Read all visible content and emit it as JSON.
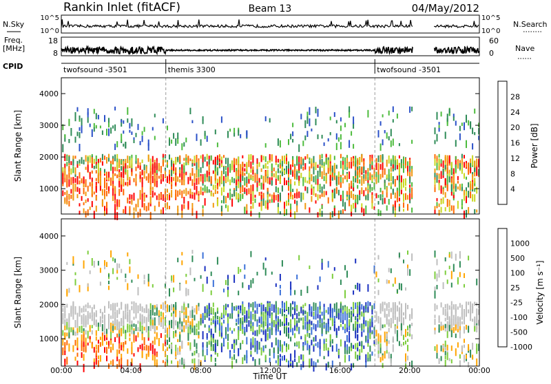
{
  "header": {
    "station": "Rankin Inlet (fitACF)",
    "beam": "Beam 13",
    "date": "04/May/2012"
  },
  "noise_panel": {
    "left_label": "N.Sky",
    "right_label": "N.Search",
    "left_ticks": [
      "10^5",
      "10^0"
    ],
    "right_ticks": [
      "10^5",
      "10^0"
    ]
  },
  "freq_panel": {
    "left_label_1": "Freq.",
    "left_label_2": "[MHz]",
    "right_label": "Nave",
    "left_ticks": [
      "18",
      "8"
    ],
    "right_ticks": [
      "60",
      "0"
    ]
  },
  "cpid": {
    "label": "CPID",
    "segments": [
      {
        "name": "twofsound -3501",
        "start": 0,
        "end": 6
      },
      {
        "name": "themis 3300",
        "start": 6,
        "end": 18
      },
      {
        "name": "twofsound -3501",
        "start": 18,
        "end": 24
      }
    ]
  },
  "chart_data": [
    {
      "type": "heatmap",
      "name": "power",
      "ylabel": "Slant Range [km]",
      "ylim": [
        200,
        4500
      ],
      "y_ticks": [
        "1000",
        "2000",
        "3000",
        "4000"
      ],
      "xlim": [
        0,
        24
      ],
      "colorbar": {
        "label": "Power [dB]",
        "ticks": [
          "4",
          "8",
          "12",
          "16",
          "20",
          "24",
          "28"
        ],
        "colors": [
          "#0000ff",
          "#2a50c8",
          "#2e8b57",
          "#4cbb3c",
          "#c8d820",
          "#f09a10",
          "#ff6a00",
          "#ff0000"
        ]
      }
    },
    {
      "type": "heatmap",
      "name": "velocity",
      "ylabel": "Slant Range [km]",
      "ylim": [
        200,
        4500
      ],
      "y_ticks": [
        "1000",
        "2000",
        "3000",
        "4000"
      ],
      "xlim": [
        0,
        24
      ],
      "x_ticks": [
        "00:00",
        "04:00",
        "08:00",
        "12:00",
        "16:00",
        "20:00",
        "00:00"
      ],
      "xlabel": "Time UT",
      "colorbar": {
        "label": "Velocity [m s⁻¹]",
        "ticks": [
          "1000",
          "500",
          "100",
          "25",
          "-25",
          "-100",
          "-500",
          "-1000"
        ],
        "colors": [
          "#1a30c0",
          "#3a70d8",
          "#2e8b57",
          "#7ccd3c",
          "#bebebe",
          "#ffa500",
          "#ff6a00",
          "#ff0000"
        ]
      }
    }
  ]
}
